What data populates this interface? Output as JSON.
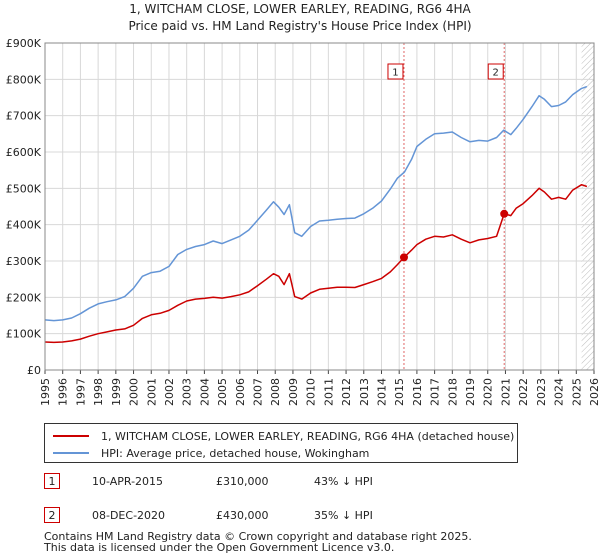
{
  "chart_data": {
    "type": "line",
    "title": "1, WITCHAM CLOSE, LOWER EARLEY, READING, RG6 4HA",
    "subtitle": "Price paid vs. HM Land Registry's House Price Index (HPI)",
    "xlabel": "",
    "ylabel": "",
    "xlim": [
      1995.0,
      2026.0
    ],
    "ylim": [
      0,
      900000
    ],
    "y_ticks": [
      {
        "value": 0,
        "label": "£0"
      },
      {
        "value": 100000,
        "label": "£100K"
      },
      {
        "value": 200000,
        "label": "£200K"
      },
      {
        "value": 300000,
        "label": "£300K"
      },
      {
        "value": 400000,
        "label": "£400K"
      },
      {
        "value": 500000,
        "label": "£500K"
      },
      {
        "value": 600000,
        "label": "£600K"
      },
      {
        "value": 700000,
        "label": "£700K"
      },
      {
        "value": 800000,
        "label": "£800K"
      },
      {
        "value": 900000,
        "label": "£900K"
      }
    ],
    "x_ticks": [
      {
        "value": 1995,
        "label": "1995"
      },
      {
        "value": 1996,
        "label": "1996"
      },
      {
        "value": 1997,
        "label": "1997"
      },
      {
        "value": 1998,
        "label": "1998"
      },
      {
        "value": 1999,
        "label": "1999"
      },
      {
        "value": 2000,
        "label": "2000"
      },
      {
        "value": 2001,
        "label": "2001"
      },
      {
        "value": 2002,
        "label": "2002"
      },
      {
        "value": 2003,
        "label": "2003"
      },
      {
        "value": 2004,
        "label": "2004"
      },
      {
        "value": 2005,
        "label": "2005"
      },
      {
        "value": 2006,
        "label": "2006"
      },
      {
        "value": 2007,
        "label": "2007"
      },
      {
        "value": 2008,
        "label": "2008"
      },
      {
        "value": 2009,
        "label": "2009"
      },
      {
        "value": 2010,
        "label": "2010"
      },
      {
        "value": 2011,
        "label": "2011"
      },
      {
        "value": 2012,
        "label": "2012"
      },
      {
        "value": 2013,
        "label": "2013"
      },
      {
        "value": 2014,
        "label": "2014"
      },
      {
        "value": 2015,
        "label": "2015"
      },
      {
        "value": 2016,
        "label": "2016"
      },
      {
        "value": 2017,
        "label": "2017"
      },
      {
        "value": 2018,
        "label": "2018"
      },
      {
        "value": 2019,
        "label": "2019"
      },
      {
        "value": 2020,
        "label": "2020"
      },
      {
        "value": 2021,
        "label": "2021"
      },
      {
        "value": 2022,
        "label": "2022"
      },
      {
        "value": 2023,
        "label": "2023"
      },
      {
        "value": 2024,
        "label": "2024"
      },
      {
        "value": 2025,
        "label": "2025"
      },
      {
        "value": 2026,
        "label": "2026"
      }
    ],
    "grid": true,
    "hatched_region": {
      "from": 2025.3,
      "to": 2026.0
    },
    "series": [
      {
        "name": "1, WITCHAM CLOSE, LOWER EARLEY, READING, RG6 4HA (detached house)",
        "color": "#cc0000",
        "points": [
          [
            1995.0,
            77000
          ],
          [
            1995.5,
            76000
          ],
          [
            1996.0,
            77000
          ],
          [
            1996.5,
            80000
          ],
          [
            1997.0,
            85000
          ],
          [
            1997.5,
            93000
          ],
          [
            1998.0,
            100000
          ],
          [
            1998.5,
            105000
          ],
          [
            1999.0,
            110000
          ],
          [
            1999.5,
            113000
          ],
          [
            2000.0,
            123000
          ],
          [
            2000.5,
            142000
          ],
          [
            2001.0,
            152000
          ],
          [
            2001.5,
            156000
          ],
          [
            2002.0,
            164000
          ],
          [
            2002.5,
            178000
          ],
          [
            2003.0,
            190000
          ],
          [
            2003.5,
            195000
          ],
          [
            2004.0,
            197000
          ],
          [
            2004.5,
            200000
          ],
          [
            2005.0,
            198000
          ],
          [
            2005.5,
            202000
          ],
          [
            2006.0,
            207000
          ],
          [
            2006.5,
            215000
          ],
          [
            2007.0,
            232000
          ],
          [
            2007.5,
            250000
          ],
          [
            2007.9,
            265000
          ],
          [
            2008.2,
            258000
          ],
          [
            2008.5,
            235000
          ],
          [
            2008.8,
            265000
          ],
          [
            2009.1,
            202000
          ],
          [
            2009.5,
            195000
          ],
          [
            2010.0,
            212000
          ],
          [
            2010.5,
            222000
          ],
          [
            2011.0,
            225000
          ],
          [
            2011.5,
            228000
          ],
          [
            2012.0,
            228000
          ],
          [
            2012.5,
            227000
          ],
          [
            2013.0,
            235000
          ],
          [
            2013.5,
            243000
          ],
          [
            2014.0,
            252000
          ],
          [
            2014.5,
            270000
          ],
          [
            2014.9,
            290000
          ],
          [
            2015.27,
            310000
          ],
          [
            2015.7,
            330000
          ],
          [
            2016.0,
            345000
          ],
          [
            2016.5,
            360000
          ],
          [
            2017.0,
            368000
          ],
          [
            2017.5,
            366000
          ],
          [
            2018.0,
            372000
          ],
          [
            2018.5,
            360000
          ],
          [
            2019.0,
            350000
          ],
          [
            2019.5,
            358000
          ],
          [
            2020.0,
            362000
          ],
          [
            2020.5,
            368000
          ],
          [
            2020.93,
            430000
          ],
          [
            2021.3,
            425000
          ],
          [
            2021.6,
            445000
          ],
          [
            2022.0,
            458000
          ],
          [
            2022.5,
            480000
          ],
          [
            2022.9,
            500000
          ],
          [
            2023.2,
            490000
          ],
          [
            2023.6,
            470000
          ],
          [
            2024.0,
            475000
          ],
          [
            2024.4,
            470000
          ],
          [
            2024.8,
            495000
          ],
          [
            2025.3,
            510000
          ],
          [
            2025.6,
            505000
          ]
        ]
      },
      {
        "name": "HPI: Average price, detached house, Wokingham",
        "color": "#6495d6",
        "points": [
          [
            1995.0,
            138000
          ],
          [
            1995.5,
            136000
          ],
          [
            1996.0,
            138000
          ],
          [
            1996.5,
            143000
          ],
          [
            1997.0,
            155000
          ],
          [
            1997.5,
            170000
          ],
          [
            1998.0,
            182000
          ],
          [
            1998.5,
            188000
          ],
          [
            1999.0,
            193000
          ],
          [
            1999.5,
            202000
          ],
          [
            2000.0,
            225000
          ],
          [
            2000.5,
            258000
          ],
          [
            2001.0,
            268000
          ],
          [
            2001.5,
            272000
          ],
          [
            2002.0,
            285000
          ],
          [
            2002.5,
            318000
          ],
          [
            2003.0,
            332000
          ],
          [
            2003.5,
            340000
          ],
          [
            2004.0,
            345000
          ],
          [
            2004.5,
            355000
          ],
          [
            2005.0,
            348000
          ],
          [
            2005.5,
            358000
          ],
          [
            2006.0,
            368000
          ],
          [
            2006.5,
            385000
          ],
          [
            2007.0,
            412000
          ],
          [
            2007.5,
            440000
          ],
          [
            2007.9,
            463000
          ],
          [
            2008.2,
            448000
          ],
          [
            2008.5,
            428000
          ],
          [
            2008.8,
            455000
          ],
          [
            2009.1,
            378000
          ],
          [
            2009.5,
            368000
          ],
          [
            2010.0,
            395000
          ],
          [
            2010.5,
            410000
          ],
          [
            2011.0,
            412000
          ],
          [
            2011.5,
            415000
          ],
          [
            2012.0,
            417000
          ],
          [
            2012.5,
            418000
          ],
          [
            2013.0,
            430000
          ],
          [
            2013.5,
            445000
          ],
          [
            2014.0,
            465000
          ],
          [
            2014.5,
            498000
          ],
          [
            2014.9,
            528000
          ],
          [
            2015.3,
            545000
          ],
          [
            2015.7,
            580000
          ],
          [
            2016.0,
            615000
          ],
          [
            2016.5,
            635000
          ],
          [
            2017.0,
            650000
          ],
          [
            2017.5,
            652000
          ],
          [
            2018.0,
            655000
          ],
          [
            2018.5,
            640000
          ],
          [
            2019.0,
            628000
          ],
          [
            2019.5,
            632000
          ],
          [
            2020.0,
            630000
          ],
          [
            2020.5,
            640000
          ],
          [
            2020.9,
            660000
          ],
          [
            2021.3,
            648000
          ],
          [
            2021.6,
            665000
          ],
          [
            2022.0,
            690000
          ],
          [
            2022.5,
            725000
          ],
          [
            2022.9,
            755000
          ],
          [
            2023.2,
            745000
          ],
          [
            2023.6,
            725000
          ],
          [
            2024.0,
            728000
          ],
          [
            2024.4,
            738000
          ],
          [
            2024.8,
            758000
          ],
          [
            2025.3,
            775000
          ],
          [
            2025.6,
            780000
          ]
        ]
      }
    ],
    "sales": [
      {
        "id": "1",
        "x": 2015.27,
        "price": 310000,
        "date": "10-APR-2015",
        "price_label": "£310,000",
        "hpi_label": "43% ↓ HPI"
      },
      {
        "id": "2",
        "x": 2020.93,
        "price": 430000,
        "date": "08-DEC-2020",
        "price_label": "£430,000",
        "hpi_label": "35% ↓ HPI"
      }
    ]
  },
  "legend": {
    "property_label": "1, WITCHAM CLOSE, LOWER EARLEY, READING, RG6 4HA (detached house)",
    "hpi_label": "HPI: Average price, detached house, Wokingham",
    "property_color": "#cc0000",
    "hpi_color": "#6495d6"
  },
  "footer": {
    "line1": "Contains HM Land Registry data © Crown copyright and database right 2025.",
    "line2": "This data is licensed under the Open Government Licence v3.0."
  }
}
